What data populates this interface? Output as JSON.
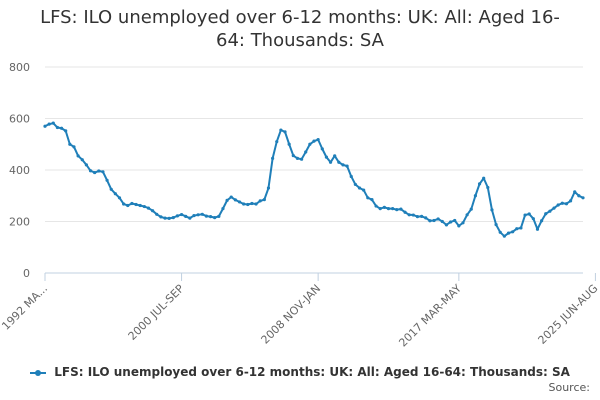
{
  "chart_data": {
    "type": "line",
    "title_lines": [
      "LFS: ILO unemployed over 6-12 months: UK: All: Aged 16-",
      "64: Thousands: SA"
    ],
    "ylim": [
      0,
      800
    ],
    "yticks": [
      0,
      200,
      400,
      600,
      800
    ],
    "x_tick_labels": [
      {
        "index": 0,
        "label": "1992 MA..."
      },
      {
        "index": 33,
        "label": "2000 JUL-SEP"
      },
      {
        "index": 66,
        "label": "2008 NOV-JAN"
      },
      {
        "index": 100,
        "label": "2017 MAR-MAY"
      },
      {
        "index": 133,
        "label": "2025 JUN-AUG"
      }
    ],
    "series": [
      {
        "name": "LFS: ILO unemployed over 6-12 months: UK: All: Aged 16-64: Thousands: SA",
        "color": "#1f7fb9",
        "values": [
          570,
          578,
          582,
          565,
          562,
          552,
          500,
          490,
          455,
          440,
          420,
          397,
          390,
          396,
          393,
          360,
          325,
          308,
          292,
          268,
          262,
          270,
          266,
          262,
          258,
          252,
          242,
          228,
          218,
          213,
          212,
          215,
          222,
          227,
          220,
          213,
          223,
          226,
          228,
          221,
          219,
          215,
          220,
          250,
          282,
          295,
          284,
          276,
          268,
          266,
          270,
          268,
          280,
          285,
          330,
          445,
          510,
          555,
          548,
          500,
          456,
          445,
          442,
          470,
          500,
          512,
          518,
          482,
          450,
          430,
          455,
          430,
          420,
          415,
          375,
          344,
          330,
          322,
          292,
          285,
          260,
          250,
          255,
          250,
          250,
          246,
          248,
          236,
          226,
          225,
          219,
          220,
          214,
          203,
          204,
          210,
          200,
          187,
          198,
          204,
          183,
          195,
          226,
          248,
          300,
          346,
          368,
          332,
          245,
          188,
          158,
          143,
          155,
          160,
          172,
          175,
          225,
          229,
          211,
          170,
          203,
          230,
          240,
          252,
          264,
          271,
          269,
          280,
          315,
          300,
          292
        ]
      }
    ]
  },
  "legend": {
    "label": "LFS: ILO unemployed over 6-12 months: UK: All: Aged 16-64: Thousands: SA",
    "color": "#1f7fb9"
  },
  "source": {
    "label": "Source:"
  }
}
